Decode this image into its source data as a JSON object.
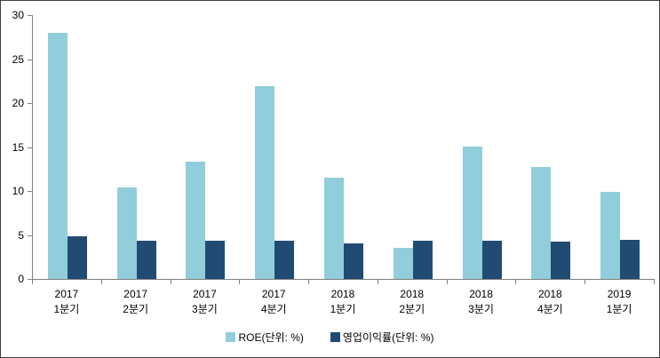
{
  "figure": {
    "background": "#ffffff",
    "border_color": "#404040"
  },
  "chart_data": {
    "type": "bar",
    "title": "",
    "xlabel": "",
    "ylabel": "",
    "categories": [
      {
        "line1": "2017",
        "line2": "1분기"
      },
      {
        "line1": "2017",
        "line2": "2분기"
      },
      {
        "line1": "2017",
        "line2": "3분기"
      },
      {
        "line1": "2017",
        "line2": "4분기"
      },
      {
        "line1": "2018",
        "line2": "1분기"
      },
      {
        "line1": "2018",
        "line2": "2분기"
      },
      {
        "line1": "2018",
        "line2": "3분기"
      },
      {
        "line1": "2018",
        "line2": "4분기"
      },
      {
        "line1": "2019",
        "line2": "1분기"
      }
    ],
    "series": [
      {
        "key": "roe",
        "name": "ROE(단위: %)",
        "color": "#92CDDC",
        "values": [
          28.0,
          10.4,
          13.3,
          21.9,
          11.5,
          3.5,
          15.1,
          12.7,
          9.9
        ]
      },
      {
        "key": "op-margin",
        "name": "영업이익률(단위: %)",
        "color": "#214B72",
        "values": [
          4.8,
          4.3,
          4.3,
          4.3,
          4.0,
          4.3,
          4.3,
          4.2,
          4.4
        ]
      }
    ],
    "ylim": [
      0,
      30
    ],
    "yticks": [
      0,
      5,
      10,
      15,
      20,
      25,
      30
    ],
    "grid": false,
    "legend_position": "bottom-center",
    "axis_color": "#808080",
    "tick_label_color": "#000000"
  }
}
